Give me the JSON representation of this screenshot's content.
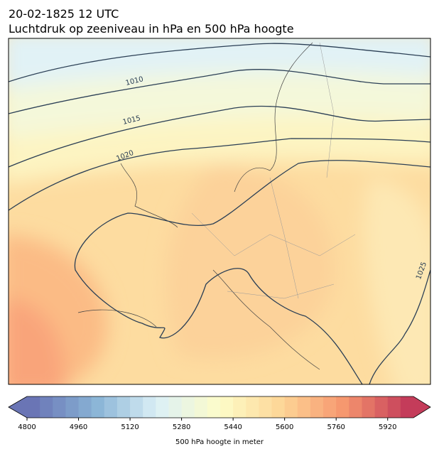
{
  "header": {
    "date": "20-02-1825 12 UTC",
    "title": "Luchtdruk op zeeniveau in hPa en 500 hPa hoogte"
  },
  "map": {
    "contour_labels": [
      1010,
      1015,
      1020,
      1025
    ]
  },
  "colorbar": {
    "label": "500 hPa hoogte in meter",
    "lim": [
      4800,
      6000
    ],
    "ticks": [
      4800,
      4960,
      5120,
      5280,
      5440,
      5600,
      5760,
      5920
    ]
  }
}
